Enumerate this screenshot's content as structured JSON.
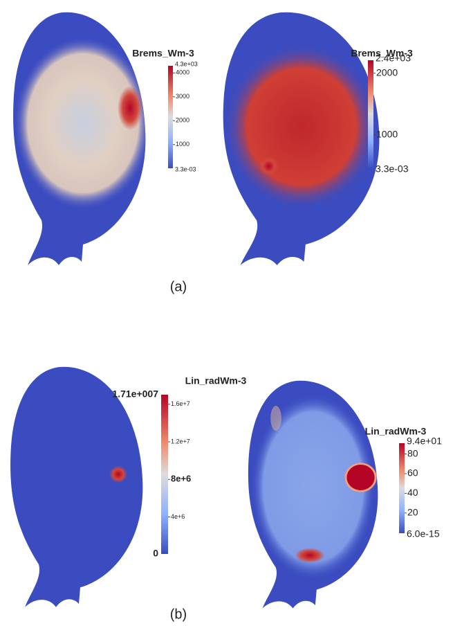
{
  "panels": [
    {
      "label": "(a)",
      "plots": [
        {
          "colorbar_title": "Brems_Wm-3",
          "max_label": "4.3e+03",
          "ticks": [
            "4000",
            "3000",
            "2000",
            "1000"
          ],
          "min_label": "3.3e-03"
        },
        {
          "colorbar_title": "Brems_Wm-3",
          "max_label": "2.4e+03",
          "ticks": [
            "2000",
            "1000"
          ],
          "min_label": "3.3e-03"
        }
      ]
    },
    {
      "label": "(b)",
      "plots": [
        {
          "colorbar_title": "Lin_radWm-3",
          "max_label": "1.71e+007",
          "ticks": [
            "1.6e+7",
            "1.2e+7",
            "8e+6",
            "4e+6"
          ],
          "min_label": "0"
        },
        {
          "colorbar_title": "Lin_radWm-3",
          "max_label": "9.4e+01",
          "ticks": [
            "80",
            "60",
            "40",
            "20"
          ],
          "min_label": "6.0e-15"
        }
      ]
    }
  ]
}
